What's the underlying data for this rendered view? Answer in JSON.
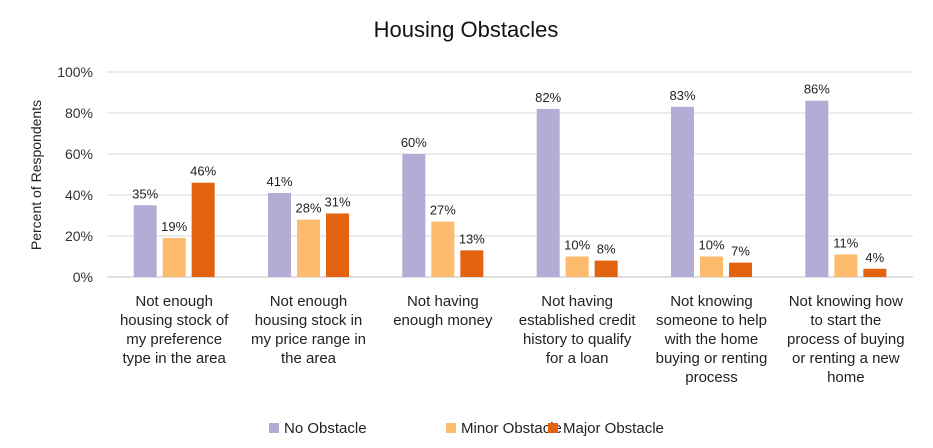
{
  "chart_data": {
    "type": "bar",
    "title": "Housing Obstacles",
    "xlabel": "",
    "ylabel": "Percent of Respondents",
    "ylim": [
      0,
      100
    ],
    "yticks": [
      "0%",
      "20%",
      "40%",
      "60%",
      "80%",
      "100%"
    ],
    "grid": true,
    "legend_position": "bottom",
    "categories": [
      [
        "Not enough",
        "housing stock of",
        "my preference",
        "type in the area"
      ],
      [
        "Not enough",
        "housing stock in",
        "my price range in",
        "the area"
      ],
      [
        "Not having",
        "enough money"
      ],
      [
        "Not having",
        "established credit",
        "history to qualify",
        "for a loan"
      ],
      [
        "Not knowing",
        "someone to help",
        "with the home",
        "buying or renting",
        "process"
      ],
      [
        "Not knowing how",
        "to start the",
        "process of buying",
        "or renting a new",
        "home"
      ]
    ],
    "series": [
      {
        "name": "No Obstacle",
        "color": "#b4acd4",
        "values": [
          35,
          41,
          60,
          82,
          83,
          86
        ],
        "labels": [
          "35%",
          "41%",
          "60%",
          "82%",
          "83%",
          "86%"
        ]
      },
      {
        "name": "Minor Obstacle",
        "color": "#fcbb6d",
        "values": [
          19,
          28,
          27,
          10,
          10,
          11
        ],
        "labels": [
          "19%",
          "28%",
          "27%",
          "10%",
          "10%",
          "11%"
        ]
      },
      {
        "name": "Major Obstacle",
        "color": "#e46311",
        "values": [
          46,
          31,
          13,
          8,
          7,
          4
        ],
        "labels": [
          "46%",
          "31%",
          "13%",
          "8%",
          "7%",
          "4%"
        ]
      }
    ]
  }
}
